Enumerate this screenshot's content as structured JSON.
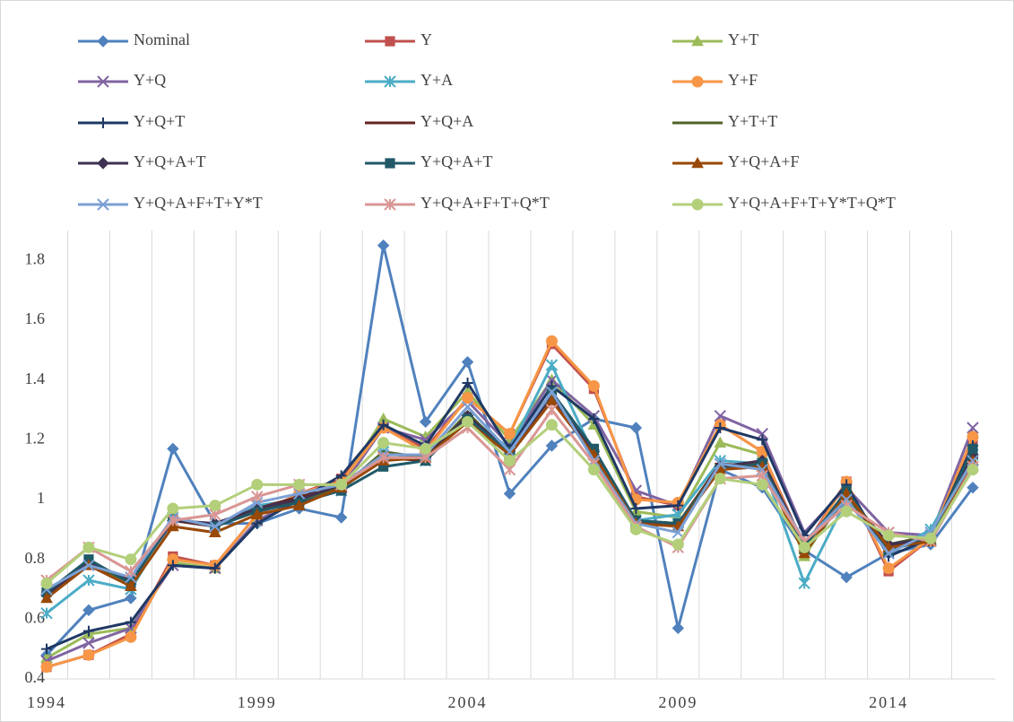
{
  "chart_data": {
    "type": "line",
    "x": [
      1994,
      1995,
      1996,
      1997,
      1998,
      1999,
      2000,
      2001,
      2002,
      2003,
      2004,
      2005,
      2006,
      2007,
      2008,
      2009,
      2010,
      2011,
      2012,
      2013,
      2014,
      2015,
      2016
    ],
    "xlim": [
      1994,
      2016
    ],
    "xticks": [
      1994,
      1999,
      2004,
      2009,
      2014
    ],
    "ylim": [
      0.4,
      1.9
    ],
    "yticks": [
      0.4,
      0.6,
      0.8,
      1,
      1.2,
      1.4,
      1.6,
      1.8
    ],
    "grid": "x",
    "legend": "top",
    "series": [
      {
        "name": "Nominal",
        "color": "#4f81bd",
        "marker": "diamond",
        "values": [
          0.48,
          0.63,
          0.67,
          1.17,
          0.92,
          0.92,
          0.97,
          0.94,
          1.85,
          1.26,
          1.46,
          1.02,
          1.18,
          1.27,
          1.24,
          0.57,
          1.1,
          1.04,
          0.83,
          0.74,
          0.82,
          0.85,
          1.04
        ]
      },
      {
        "name": "Y",
        "color": "#c0504d",
        "marker": "square",
        "values": [
          0.44,
          0.48,
          0.55,
          0.81,
          0.78,
          0.95,
          1.02,
          1.07,
          1.24,
          1.17,
          1.34,
          1.22,
          1.52,
          1.37,
          1.01,
          0.98,
          1.25,
          1.16,
          0.84,
          1.06,
          0.76,
          0.87,
          1.2
        ]
      },
      {
        "name": "Y+T",
        "color": "#9bbb59",
        "marker": "triangle",
        "values": [
          0.47,
          0.55,
          0.57,
          0.79,
          0.77,
          0.93,
          1.0,
          1.05,
          1.27,
          1.21,
          1.36,
          1.2,
          1.4,
          1.25,
          0.96,
          0.94,
          1.19,
          1.15,
          0.81,
          1.03,
          0.83,
          0.87,
          1.16
        ]
      },
      {
        "name": "Y+Q",
        "color": "#8064a2",
        "marker": "x",
        "values": [
          0.46,
          0.52,
          0.57,
          0.78,
          0.77,
          0.93,
          1.0,
          1.04,
          1.24,
          1.2,
          1.33,
          1.18,
          1.4,
          1.28,
          1.03,
          0.98,
          1.28,
          1.22,
          0.89,
          1.04,
          0.89,
          0.88,
          1.24
        ]
      },
      {
        "name": "Y+A",
        "color": "#4bacc6",
        "marker": "asterisk",
        "values": [
          0.62,
          0.73,
          0.7,
          0.93,
          0.91,
          0.98,
          1.0,
          1.03,
          1.16,
          1.13,
          1.28,
          1.17,
          1.45,
          1.15,
          0.93,
          0.95,
          1.13,
          1.12,
          0.72,
          1.0,
          0.82,
          0.9,
          1.15
        ]
      },
      {
        "name": "Y+F",
        "color": "#f79646",
        "marker": "circle",
        "values": [
          0.44,
          0.48,
          0.54,
          0.8,
          0.78,
          0.95,
          1.02,
          1.06,
          1.24,
          1.16,
          1.34,
          1.22,
          1.53,
          1.38,
          1.0,
          0.99,
          1.25,
          1.16,
          0.83,
          1.06,
          0.77,
          0.87,
          1.21
        ]
      },
      {
        "name": "Y+Q+T",
        "color": "#1f3864",
        "marker": "plus",
        "values": [
          0.5,
          0.56,
          0.59,
          0.78,
          0.77,
          0.92,
          1.0,
          1.08,
          1.25,
          1.18,
          1.39,
          1.17,
          1.38,
          1.27,
          0.97,
          0.98,
          1.24,
          1.2,
          0.88,
          1.05,
          0.81,
          0.87,
          1.18
        ]
      },
      {
        "name": "Y+Q+A",
        "color": "#632523",
        "marker": "dash",
        "values": [
          0.68,
          0.78,
          0.73,
          0.93,
          0.91,
          0.97,
          1.01,
          1.04,
          1.14,
          1.13,
          1.27,
          1.15,
          1.33,
          1.15,
          0.92,
          0.92,
          1.12,
          1.11,
          0.85,
          1.0,
          0.84,
          0.88,
          1.14
        ]
      },
      {
        "name": "Y+T+T",
        "color": "#4f6228",
        "marker": "dash",
        "values": [
          0.69,
          0.79,
          0.72,
          0.94,
          0.91,
          0.96,
          1.0,
          1.04,
          1.16,
          1.14,
          1.29,
          1.15,
          1.36,
          1.16,
          0.93,
          0.92,
          1.11,
          1.12,
          0.82,
          1.01,
          0.85,
          0.88,
          1.15
        ]
      },
      {
        "name": "Y+Q+A+T",
        "color": "#3f3151",
        "marker": "diamond",
        "values": [
          0.68,
          0.79,
          0.73,
          0.93,
          0.92,
          0.97,
          1.0,
          1.05,
          1.14,
          1.14,
          1.28,
          1.16,
          1.34,
          1.16,
          0.93,
          0.91,
          1.11,
          1.13,
          0.85,
          1.02,
          0.85,
          0.87,
          1.15
        ]
      },
      {
        "name": "Y+Q+A+T",
        "color": "#215968",
        "marker": "square",
        "values": [
          0.69,
          0.8,
          0.72,
          0.94,
          0.91,
          0.96,
          0.99,
          1.03,
          1.11,
          1.13,
          1.27,
          1.16,
          1.36,
          1.17,
          0.93,
          0.92,
          1.1,
          1.12,
          0.84,
          1.03,
          0.83,
          0.87,
          1.17
        ]
      },
      {
        "name": "Y+Q+A+F",
        "color": "#984807",
        "marker": "triangle",
        "values": [
          0.67,
          0.78,
          0.71,
          0.91,
          0.89,
          0.95,
          0.98,
          1.04,
          1.13,
          1.14,
          1.26,
          1.15,
          1.33,
          1.15,
          0.92,
          0.91,
          1.1,
          1.11,
          0.82,
          1.02,
          0.84,
          0.86,
          1.13
        ]
      },
      {
        "name": "Y+Q+A+F+T+Y*T",
        "color": "#7ba0d4",
        "marker": "x",
        "values": [
          0.7,
          0.78,
          0.74,
          0.94,
          0.91,
          0.99,
          1.02,
          1.05,
          1.15,
          1.15,
          1.31,
          1.16,
          1.36,
          1.13,
          0.92,
          0.89,
          1.12,
          1.1,
          0.86,
          1.0,
          0.82,
          0.89,
          1.13
        ]
      },
      {
        "name": "Y+Q+A+F+T+Q*T",
        "color": "#d99694",
        "marker": "asterisk",
        "values": [
          0.73,
          0.84,
          0.76,
          0.93,
          0.95,
          1.01,
          1.05,
          1.05,
          1.14,
          1.14,
          1.24,
          1.1,
          1.3,
          1.12,
          0.91,
          0.84,
          1.07,
          1.08,
          0.86,
          0.98,
          0.89,
          0.86,
          1.11
        ]
      },
      {
        "name": "Y+Q+A+F+T+Y*T+Q*T",
        "color": "#b3cf7a",
        "marker": "circle",
        "values": [
          0.72,
          0.84,
          0.8,
          0.97,
          0.98,
          1.05,
          1.05,
          1.05,
          1.19,
          1.17,
          1.26,
          1.13,
          1.25,
          1.1,
          0.9,
          0.85,
          1.07,
          1.05,
          0.84,
          0.96,
          0.88,
          0.87,
          1.1
        ]
      }
    ]
  }
}
